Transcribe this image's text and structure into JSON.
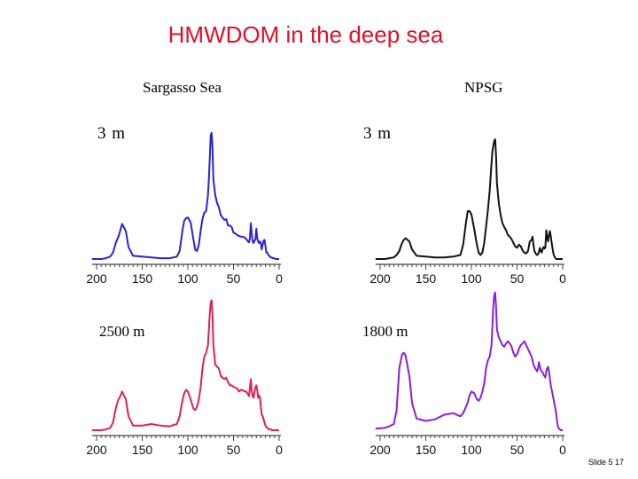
{
  "title": "HMWDOM in the deep sea",
  "slide_label": "Slide 5 17",
  "columns": [
    "Sargasso Sea",
    "NPSG"
  ],
  "chart_data": [
    {
      "type": "line",
      "site": "Sargasso Sea",
      "label": "3 m",
      "color": "#2a22d6",
      "xlim": [
        200,
        0
      ],
      "ticks": [
        200,
        150,
        100,
        50,
        0
      ],
      "x": [
        205,
        195,
        190,
        185,
        182,
        179,
        176,
        174,
        172,
        168,
        165,
        160,
        150,
        140,
        130,
        120,
        112,
        109,
        106,
        104,
        102,
        100,
        97,
        94,
        92,
        90,
        88,
        86,
        84,
        82,
        80,
        78,
        77,
        76,
        75,
        74,
        73,
        72,
        70,
        68,
        66,
        64,
        62,
        60,
        58,
        56,
        54,
        52,
        50,
        48,
        46,
        44,
        42,
        40,
        38,
        36,
        34,
        33,
        32,
        31,
        30,
        29,
        28,
        27,
        26,
        25,
        24,
        23,
        22,
        21,
        20,
        19,
        18,
        17,
        16,
        15,
        14,
        13,
        12,
        11,
        10,
        9,
        8,
        7,
        6,
        5,
        4,
        3,
        2,
        1,
        0
      ],
      "y": [
        0,
        0,
        1,
        3,
        8,
        20,
        28,
        36,
        44,
        35,
        15,
        4,
        3,
        2,
        1,
        1,
        3,
        10,
        35,
        48,
        51,
        52,
        46,
        25,
        12,
        10,
        18,
        35,
        50,
        58,
        60,
        80,
        100,
        125,
        155,
        158,
        140,
        100,
        80,
        70,
        65,
        55,
        52,
        49,
        50,
        42,
        42,
        40,
        33,
        32,
        30,
        29,
        28,
        28,
        27,
        25,
        22,
        21,
        26,
        45,
        32,
        22,
        20,
        23,
        24,
        38,
        26,
        22,
        20,
        22,
        20,
        12,
        18,
        23,
        24,
        16,
        8,
        8,
        6,
        4,
        3,
        2,
        2,
        1,
        1,
        1,
        0,
        0,
        0,
        0,
        0
      ]
    },
    {
      "type": "line",
      "site": "NPSG",
      "label": "3 m",
      "color": "#111111",
      "xlim": [
        200,
        0
      ],
      "ticks": [
        200,
        150,
        100,
        50,
        0
      ],
      "x": [
        205,
        195,
        190,
        185,
        182,
        179,
        176,
        174,
        172,
        168,
        165,
        160,
        150,
        140,
        130,
        120,
        112,
        109,
        106,
        104,
        102,
        100,
        97,
        94,
        92,
        90,
        88,
        86,
        84,
        82,
        80,
        78,
        77,
        76,
        75,
        74,
        73,
        72,
        70,
        68,
        66,
        64,
        62,
        60,
        58,
        56,
        54,
        52,
        50,
        48,
        46,
        44,
        42,
        40,
        38,
        36,
        34,
        33,
        32,
        31,
        30,
        29,
        28,
        27,
        26,
        25,
        24,
        23,
        22,
        21,
        20,
        19,
        18,
        17,
        16,
        15,
        14,
        13,
        12,
        11,
        10,
        9,
        8,
        7,
        6,
        5,
        4,
        3,
        2,
        1,
        0
      ],
      "y": [
        0,
        0,
        1,
        2,
        5,
        10,
        20,
        24,
        26,
        22,
        12,
        4,
        3,
        2,
        2,
        3,
        5,
        18,
        45,
        60,
        60,
        56,
        38,
        18,
        8,
        5,
        8,
        20,
        40,
        60,
        85,
        120,
        135,
        142,
        148,
        150,
        130,
        95,
        70,
        55,
        45,
        40,
        36,
        30,
        28,
        25,
        20,
        16,
        14,
        18,
        16,
        11,
        8,
        7,
        10,
        22,
        24,
        28,
        18,
        10,
        8,
        6,
        5,
        6,
        9,
        14,
        10,
        8,
        12,
        15,
        13,
        14,
        36,
        27,
        22,
        30,
        35,
        28,
        20,
        12,
        6,
        3,
        1,
        0,
        0,
        0,
        0,
        0,
        0,
        0,
        0
      ]
    },
    {
      "type": "line",
      "site": "Sargasso Sea",
      "label": "2500 m",
      "color": "#e02050",
      "xlim": [
        200,
        0
      ],
      "ticks": [
        200,
        150,
        100,
        50,
        0
      ],
      "x": [
        205,
        195,
        190,
        185,
        182,
        179,
        176,
        174,
        172,
        168,
        165,
        160,
        150,
        140,
        130,
        120,
        112,
        109,
        106,
        104,
        102,
        100,
        97,
        94,
        92,
        90,
        88,
        86,
        84,
        82,
        80,
        78,
        77,
        76,
        75,
        74,
        73,
        72,
        70,
        68,
        66,
        64,
        62,
        60,
        58,
        56,
        54,
        52,
        50,
        48,
        46,
        44,
        42,
        40,
        38,
        36,
        34,
        33,
        32,
        31,
        30,
        29,
        28,
        27,
        26,
        25,
        24,
        23,
        22,
        21,
        20,
        19,
        18,
        17,
        16,
        15,
        14,
        13,
        12,
        11,
        10,
        9,
        8,
        7,
        6,
        5,
        4,
        3,
        2,
        1,
        0
      ],
      "y": [
        0,
        0,
        1,
        3,
        10,
        28,
        40,
        44,
        50,
        40,
        18,
        6,
        6,
        8,
        6,
        5,
        8,
        18,
        38,
        48,
        52,
        50,
        40,
        28,
        26,
        30,
        40,
        55,
        80,
        95,
        100,
        110,
        130,
        150,
        165,
        168,
        150,
        110,
        85,
        82,
        80,
        70,
        68,
        66,
        68,
        62,
        58,
        58,
        56,
        55,
        54,
        50,
        52,
        52,
        50,
        50,
        46,
        44,
        55,
        66,
        50,
        44,
        42,
        50,
        55,
        58,
        52,
        42,
        45,
        42,
        30,
        20,
        18,
        14,
        10,
        6,
        4,
        3,
        2,
        1,
        1,
        1,
        0,
        0,
        0,
        0,
        0,
        0,
        0,
        0,
        0
      ]
    },
    {
      "type": "line",
      "site": "NPSG",
      "label": "1800 m",
      "color": "#8a1ee0",
      "xlim": [
        200,
        0
      ],
      "ticks": [
        200,
        150,
        100,
        50,
        0
      ],
      "x": [
        205,
        195,
        190,
        185,
        182,
        179,
        176,
        174,
        172,
        168,
        165,
        160,
        150,
        140,
        130,
        120,
        112,
        109,
        106,
        104,
        102,
        100,
        97,
        94,
        92,
        90,
        88,
        86,
        84,
        82,
        80,
        78,
        77,
        76,
        75,
        74,
        73,
        72,
        70,
        68,
        66,
        64,
        62,
        60,
        58,
        56,
        54,
        52,
        50,
        48,
        46,
        44,
        42,
        40,
        38,
        36,
        34,
        33,
        32,
        31,
        30,
        29,
        28,
        27,
        26,
        25,
        24,
        23,
        22,
        21,
        20,
        19,
        18,
        17,
        16,
        15,
        14,
        13,
        12,
        11,
        10,
        9,
        8,
        7,
        6,
        5,
        4,
        3,
        2,
        1,
        0
      ],
      "y": [
        2,
        3,
        5,
        8,
        25,
        80,
        98,
        100,
        96,
        70,
        35,
        15,
        12,
        14,
        20,
        22,
        18,
        22,
        30,
        36,
        45,
        50,
        48,
        40,
        38,
        42,
        50,
        60,
        80,
        90,
        95,
        110,
        135,
        160,
        175,
        178,
        160,
        130,
        120,
        115,
        110,
        108,
        112,
        115,
        112,
        108,
        100,
        95,
        98,
        105,
        110,
        112,
        115,
        110,
        105,
        100,
        95,
        90,
        85,
        82,
        80,
        78,
        76,
        80,
        88,
        82,
        78,
        76,
        75,
        72,
        70,
        68,
        76,
        80,
        82,
        76,
        66,
        58,
        52,
        46,
        40,
        34,
        28,
        20,
        10,
        4,
        2,
        1,
        0,
        0,
        0
      ]
    }
  ]
}
